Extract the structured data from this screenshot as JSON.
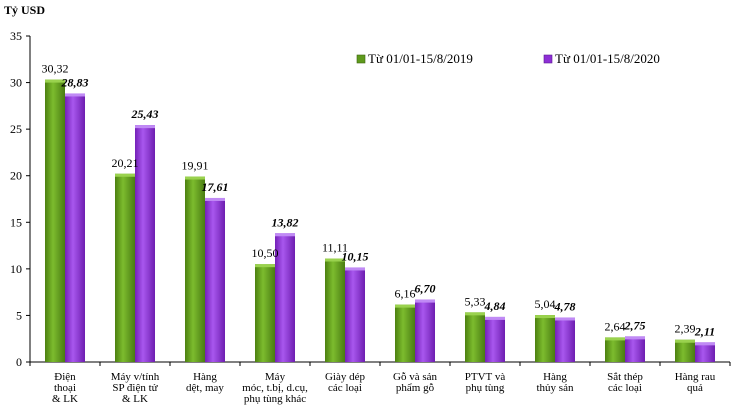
{
  "chart_data": {
    "type": "bar",
    "ylabel": "Tỷ USD",
    "ylim": [
      0,
      35
    ],
    "yticks": [
      0,
      5,
      10,
      15,
      20,
      25,
      30,
      35
    ],
    "grid": false,
    "legend_position": "top-right",
    "categories": [
      [
        "Điện",
        "thoại",
        "& LK"
      ],
      [
        "Máy v/tính",
        "SP điện tử",
        "& LK"
      ],
      [
        "Hàng",
        "dệt, may"
      ],
      [
        "Máy",
        "móc, t.bị, d.cụ,",
        "phụ tùng khác"
      ],
      [
        "Giày dép",
        "các loại"
      ],
      [
        "Gỗ và sản",
        "phẩm gỗ"
      ],
      [
        "PTVT và",
        "phụ tùng"
      ],
      [
        "Hàng",
        "thủy sản"
      ],
      [
        "Sắt thép",
        "các loại"
      ],
      [
        "Hàng rau",
        "quả"
      ]
    ],
    "series": [
      {
        "name": "Từ 01/01-15/8/2019",
        "color": "#5f9a1c",
        "values": [
          30.32,
          20.21,
          19.91,
          10.5,
          11.11,
          6.16,
          5.33,
          5.04,
          2.64,
          2.39
        ],
        "labels": [
          "30,32",
          "20,21",
          "19,91",
          "10,50",
          "11,11",
          "6,16",
          "5,33",
          "5,04",
          "2,64",
          "2,39"
        ]
      },
      {
        "name": "Từ 01/01-15/8/2020",
        "color": "#8e2fd6",
        "values": [
          28.83,
          25.43,
          17.61,
          13.82,
          10.15,
          6.7,
          4.84,
          4.78,
          2.75,
          2.11
        ],
        "labels": [
          "28,83",
          "25,43",
          "17,61",
          "13,82",
          "10,15",
          "6,70",
          "4,84",
          "4,78",
          "2,75",
          "2,11"
        ]
      }
    ]
  }
}
